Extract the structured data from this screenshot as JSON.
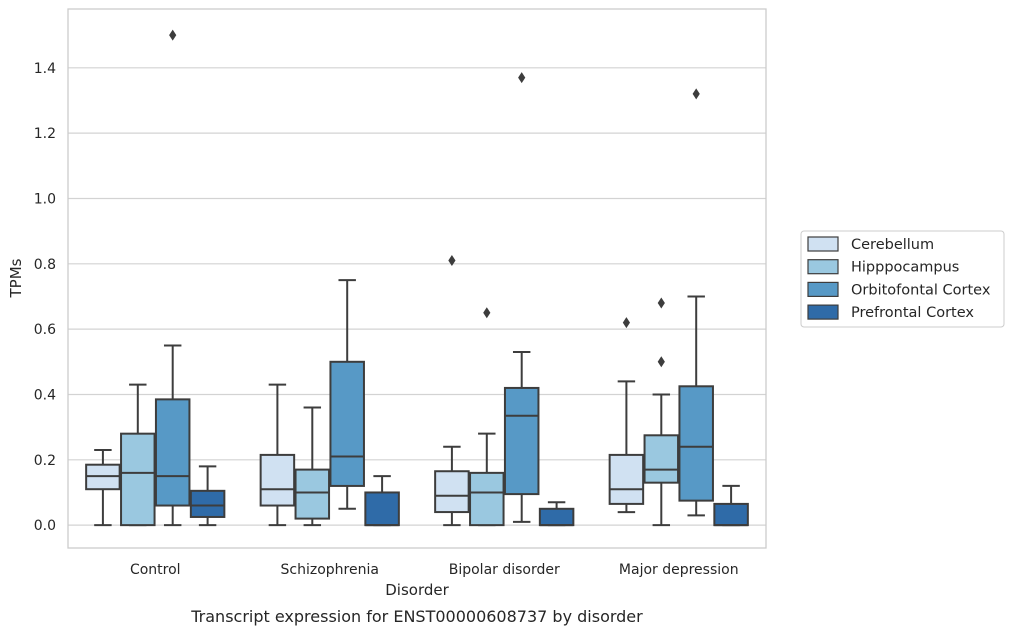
{
  "chart_data": {
    "type": "box",
    "caption": "Transcript expression for ENST00000608737 by disorder",
    "xlabel": "Disorder",
    "ylabel": "TPMs",
    "ylim": [
      -0.07,
      1.58
    ],
    "yticks": [
      0.0,
      0.2,
      0.4,
      0.6,
      0.8,
      1.0,
      1.2,
      1.4
    ],
    "ytick_labels": [
      "0.0",
      "0.2",
      "0.4",
      "0.6",
      "0.8",
      "1.0",
      "1.2",
      "1.4"
    ],
    "grid": "horizontal",
    "legend_position": "right",
    "categories": [
      "Control",
      "Schizophrenia",
      "Bipolar disorder",
      "Major depression"
    ],
    "series": [
      {
        "name": "Cerebellum",
        "color": "#d0e1f2",
        "boxes": [
          {
            "whislo": 0.0,
            "q1": 0.11,
            "med": 0.15,
            "q3": 0.185,
            "whishi": 0.23,
            "fliers": []
          },
          {
            "whislo": 0.0,
            "q1": 0.06,
            "med": 0.11,
            "q3": 0.215,
            "whishi": 0.43,
            "fliers": []
          },
          {
            "whislo": 0.0,
            "q1": 0.04,
            "med": 0.09,
            "q3": 0.165,
            "whishi": 0.24,
            "fliers": [
              0.81
            ]
          },
          {
            "whislo": 0.04,
            "q1": 0.065,
            "med": 0.11,
            "q3": 0.215,
            "whishi": 0.44,
            "fliers": [
              0.62
            ]
          }
        ]
      },
      {
        "name": "Hipppocampus",
        "color": "#9ac8e0",
        "boxes": [
          {
            "whislo": 0.0,
            "q1": 0.0,
            "med": 0.16,
            "q3": 0.28,
            "whishi": 0.43,
            "fliers": []
          },
          {
            "whislo": 0.0,
            "q1": 0.02,
            "med": 0.1,
            "q3": 0.17,
            "whishi": 0.36,
            "fliers": []
          },
          {
            "whislo": 0.0,
            "q1": 0.0,
            "med": 0.1,
            "q3": 0.16,
            "whishi": 0.28,
            "fliers": [
              0.65
            ]
          },
          {
            "whislo": 0.0,
            "q1": 0.13,
            "med": 0.17,
            "q3": 0.275,
            "whishi": 0.4,
            "fliers": [
              0.5,
              0.68
            ]
          }
        ]
      },
      {
        "name": "Orbitofontal Cortex",
        "color": "#5799c6",
        "boxes": [
          {
            "whislo": 0.0,
            "q1": 0.06,
            "med": 0.15,
            "q3": 0.385,
            "whishi": 0.55,
            "fliers": [
              1.5
            ]
          },
          {
            "whislo": 0.05,
            "q1": 0.12,
            "med": 0.21,
            "q3": 0.5,
            "whishi": 0.75,
            "fliers": []
          },
          {
            "whislo": 0.01,
            "q1": 0.095,
            "med": 0.335,
            "q3": 0.42,
            "whishi": 0.53,
            "fliers": [
              1.37
            ]
          },
          {
            "whislo": 0.03,
            "q1": 0.075,
            "med": 0.24,
            "q3": 0.425,
            "whishi": 0.7,
            "fliers": [
              1.32
            ]
          }
        ]
      },
      {
        "name": "Prefrontal Cortex",
        "color": "#2f6ba8",
        "boxes": [
          {
            "whislo": 0.0,
            "q1": 0.025,
            "med": 0.06,
            "q3": 0.105,
            "whishi": 0.18,
            "fliers": []
          },
          {
            "whislo": 0.0,
            "q1": 0.0,
            "med": 0.0,
            "q3": 0.1,
            "whishi": 0.15,
            "fliers": []
          },
          {
            "whislo": 0.0,
            "q1": 0.0,
            "med": 0.0,
            "q3": 0.05,
            "whishi": 0.07,
            "fliers": []
          },
          {
            "whislo": 0.0,
            "q1": 0.0,
            "med": 0.0,
            "q3": 0.065,
            "whishi": 0.12,
            "fliers": []
          }
        ]
      }
    ]
  }
}
